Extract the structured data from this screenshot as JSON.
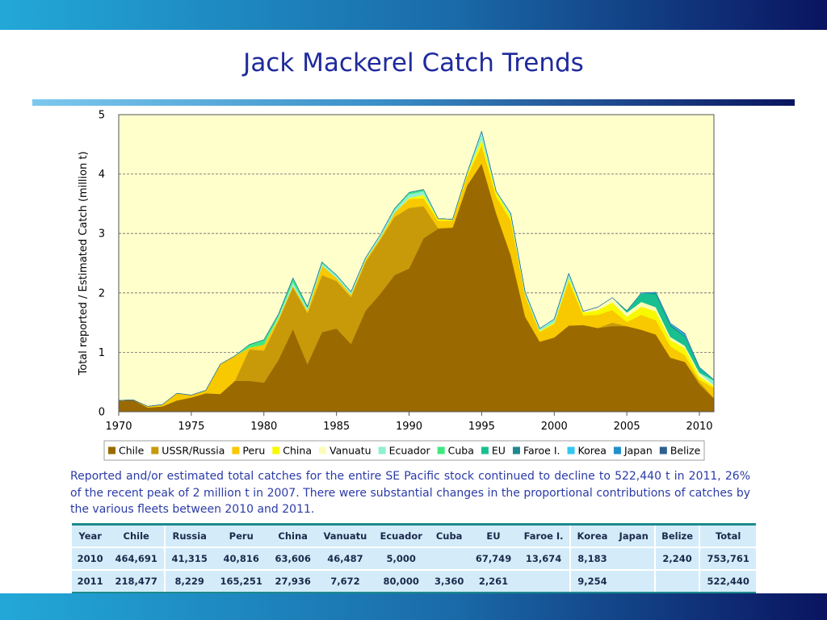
{
  "slide": {
    "title": "Jack Mackerel Catch Trends",
    "caption": "Reported and/or estimated total catches for the entire SE Pacific stock continued to decline to 522,440 t in 2011, 26% of the recent peak of 2 million t in 2007. There were substantial changes in the proportional contributions of catches by the various fleets between 2010 and 2011."
  },
  "colors": {
    "banner_start": "#22a8d8",
    "banner_end": "#0a1460",
    "title": "#1f2a9c",
    "caption": "#2b3ba8",
    "plot_background": "#ffffcc",
    "table_background": "#d4ecfa",
    "table_rule": "#1d8a8c"
  },
  "chart_data": {
    "type": "area",
    "stacked": true,
    "title": "",
    "xlabel": "",
    "ylabel": "Total reported / Estimated Catch (million t)",
    "xlim": [
      1970,
      2011
    ],
    "ylim": [
      0,
      5
    ],
    "x_ticks": [
      1970,
      1975,
      1980,
      1985,
      1990,
      1995,
      2000,
      2005,
      2010
    ],
    "y_ticks": [
      0,
      1,
      2,
      3,
      4,
      5
    ],
    "grid": "horizontal dashed",
    "legend_position": "bottom",
    "x": [
      1970,
      1971,
      1972,
      1973,
      1974,
      1975,
      1976,
      1977,
      1978,
      1979,
      1980,
      1981,
      1982,
      1983,
      1984,
      1985,
      1986,
      1987,
      1988,
      1989,
      1990,
      1991,
      1992,
      1993,
      1994,
      1995,
      1996,
      1997,
      1998,
      1999,
      2000,
      2001,
      2002,
      2003,
      2004,
      2005,
      2006,
      2007,
      2008,
      2009,
      2010,
      2011
    ],
    "series": [
      {
        "name": "Chile",
        "color": "#9a6a00",
        "values": [
          0.19,
          0.2,
          0.07,
          0.09,
          0.19,
          0.24,
          0.31,
          0.3,
          0.52,
          0.52,
          0.49,
          0.87,
          1.39,
          0.8,
          1.34,
          1.4,
          1.14,
          1.7,
          1.98,
          2.3,
          2.41,
          2.92,
          3.08,
          3.1,
          3.81,
          4.18,
          3.34,
          2.64,
          1.6,
          1.18,
          1.25,
          1.45,
          1.46,
          1.41,
          1.44,
          1.44,
          1.38,
          1.3,
          0.91,
          0.84,
          0.46,
          0.22
        ]
      },
      {
        "name": "USSR/Russia",
        "color": "#c89a0a",
        "values": [
          0,
          0,
          0,
          0,
          0,
          0,
          0,
          0,
          0,
          0.53,
          0.54,
          0.66,
          0.71,
          0.86,
          0.96,
          0.8,
          0.79,
          0.82,
          0.91,
          0.98,
          1.02,
          0.54,
          0.01,
          0,
          0,
          0,
          0,
          0,
          0,
          0,
          0,
          0,
          0,
          0,
          0.06,
          0,
          0,
          0,
          0,
          0,
          0.04,
          0.01
        ]
      },
      {
        "name": "Peru",
        "color": "#f8c800",
        "values": [
          0,
          0,
          0.02,
          0.03,
          0.12,
          0.04,
          0.05,
          0.5,
          0.42,
          0.03,
          0.1,
          0.04,
          0.02,
          0.04,
          0.16,
          0.05,
          0.04,
          0.04,
          0.03,
          0.07,
          0.15,
          0.13,
          0.12,
          0.12,
          0.15,
          0.3,
          0.28,
          0.58,
          0.35,
          0.16,
          0.23,
          0.75,
          0.16,
          0.22,
          0.21,
          0.07,
          0.25,
          0.24,
          0.19,
          0.11,
          0.04,
          0.17
        ]
      },
      {
        "name": "China",
        "color": "#f8f800",
        "values": [
          0,
          0,
          0,
          0,
          0,
          0,
          0,
          0,
          0,
          0,
          0,
          0,
          0,
          0,
          0,
          0,
          0,
          0,
          0,
          0,
          0.02,
          0.06,
          0.04,
          0.01,
          0.05,
          0.1,
          0.08,
          0.07,
          0.02,
          0.02,
          0.02,
          0.05,
          0.05,
          0.08,
          0.13,
          0.09,
          0.14,
          0.15,
          0.11,
          0.12,
          0.06,
          0.03
        ]
      },
      {
        "name": "Vanuatu",
        "color": "#fcfcb8",
        "values": [
          0,
          0,
          0,
          0,
          0,
          0,
          0,
          0,
          0,
          0,
          0,
          0,
          0,
          0,
          0,
          0,
          0,
          0,
          0,
          0,
          0,
          0,
          0,
          0,
          0,
          0,
          0,
          0,
          0,
          0,
          0,
          0,
          0.02,
          0.05,
          0.08,
          0.07,
          0.08,
          0.07,
          0.05,
          0.04,
          0.05,
          0.01
        ]
      },
      {
        "name": "Ecuador",
        "color": "#90f0d0",
        "values": [
          0,
          0,
          0,
          0,
          0,
          0,
          0,
          0,
          0,
          0,
          0,
          0.03,
          0.06,
          0.04,
          0.04,
          0.04,
          0.04,
          0.03,
          0.05,
          0.05,
          0.06,
          0.06,
          0,
          0.01,
          0.01,
          0.14,
          0.01,
          0.05,
          0.04,
          0.04,
          0.06,
          0.08,
          0,
          0,
          0,
          0,
          0,
          0,
          0,
          0,
          0.01,
          0.08
        ]
      },
      {
        "name": "Cuba",
        "color": "#40e880",
        "values": [
          0,
          0,
          0,
          0,
          0,
          0,
          0,
          0,
          0,
          0.05,
          0.08,
          0.04,
          0.07,
          0.03,
          0.02,
          0.01,
          0.01,
          0,
          0,
          0.02,
          0.03,
          0.03,
          0,
          0,
          0,
          0,
          0,
          0,
          0,
          0,
          0,
          0,
          0,
          0,
          0,
          0,
          0,
          0,
          0,
          0,
          0,
          0.01
        ]
      },
      {
        "name": "EU",
        "color": "#18c090",
        "values": [
          0,
          0,
          0,
          0,
          0,
          0,
          0,
          0,
          0,
          0,
          0,
          0,
          0,
          0,
          0,
          0,
          0,
          0,
          0,
          0,
          0,
          0,
          0,
          0,
          0,
          0,
          0,
          0,
          0,
          0,
          0,
          0,
          0,
          0,
          0,
          0.03,
          0.14,
          0.22,
          0.18,
          0.15,
          0.07,
          0
        ]
      },
      {
        "name": "Faroe I.",
        "color": "#208890",
        "values": [
          0,
          0,
          0,
          0,
          0,
          0,
          0,
          0,
          0,
          0,
          0,
          0,
          0,
          0,
          0,
          0,
          0,
          0,
          0,
          0,
          0,
          0,
          0,
          0,
          0,
          0,
          0,
          0,
          0,
          0,
          0,
          0,
          0,
          0,
          0,
          0,
          0,
          0.02,
          0.03,
          0.02,
          0.01,
          0
        ]
      },
      {
        "name": "Korea",
        "color": "#30c8f0",
        "values": [
          0,
          0,
          0,
          0,
          0,
          0,
          0,
          0,
          0,
          0,
          0,
          0,
          0,
          0,
          0,
          0,
          0,
          0,
          0,
          0,
          0,
          0,
          0,
          0,
          0,
          0,
          0,
          0,
          0,
          0,
          0,
          0,
          0,
          0,
          0,
          0,
          0.01,
          0.01,
          0.02,
          0.02,
          0.01,
          0.01
        ]
      },
      {
        "name": "Japan",
        "color": "#2090c8",
        "values": [
          0,
          0,
          0,
          0,
          0,
          0,
          0,
          0,
          0,
          0,
          0,
          0,
          0,
          0,
          0,
          0,
          0,
          0,
          0,
          0,
          0,
          0,
          0,
          0,
          0,
          0,
          0,
          0,
          0,
          0,
          0,
          0,
          0,
          0,
          0,
          0,
          0,
          0,
          0,
          0.01,
          0,
          0
        ]
      },
      {
        "name": "Belize",
        "color": "#306090",
        "values": [
          0,
          0,
          0,
          0,
          0,
          0,
          0,
          0,
          0,
          0,
          0,
          0,
          0,
          0,
          0,
          0,
          0,
          0,
          0,
          0,
          0,
          0,
          0,
          0,
          0,
          0,
          0,
          0,
          0,
          0,
          0,
          0,
          0,
          0,
          0,
          0,
          0,
          0,
          0,
          0.01,
          0,
          0
        ]
      }
    ]
  },
  "table": {
    "headers": [
      "Year",
      "Chile",
      "Russia",
      "Peru",
      "China",
      "Vanuatu",
      "Ecuador",
      "Cuba",
      "EU",
      "Faroe I.",
      "Korea",
      "Japan",
      "Belize",
      "Total"
    ],
    "rows": [
      [
        "2010",
        "464,691",
        "41,315",
        "40,816",
        "63,606",
        "46,487",
        "5,000",
        "",
        "67,749",
        "13,674",
        "8,183",
        "",
        "2,240",
        "753,761"
      ],
      [
        "2011",
        "218,477",
        "8,229",
        "165,251",
        "27,936",
        "7,672",
        "80,000",
        "3,360",
        "2,261",
        "",
        "9,254",
        "",
        "",
        "522,440"
      ]
    ]
  }
}
